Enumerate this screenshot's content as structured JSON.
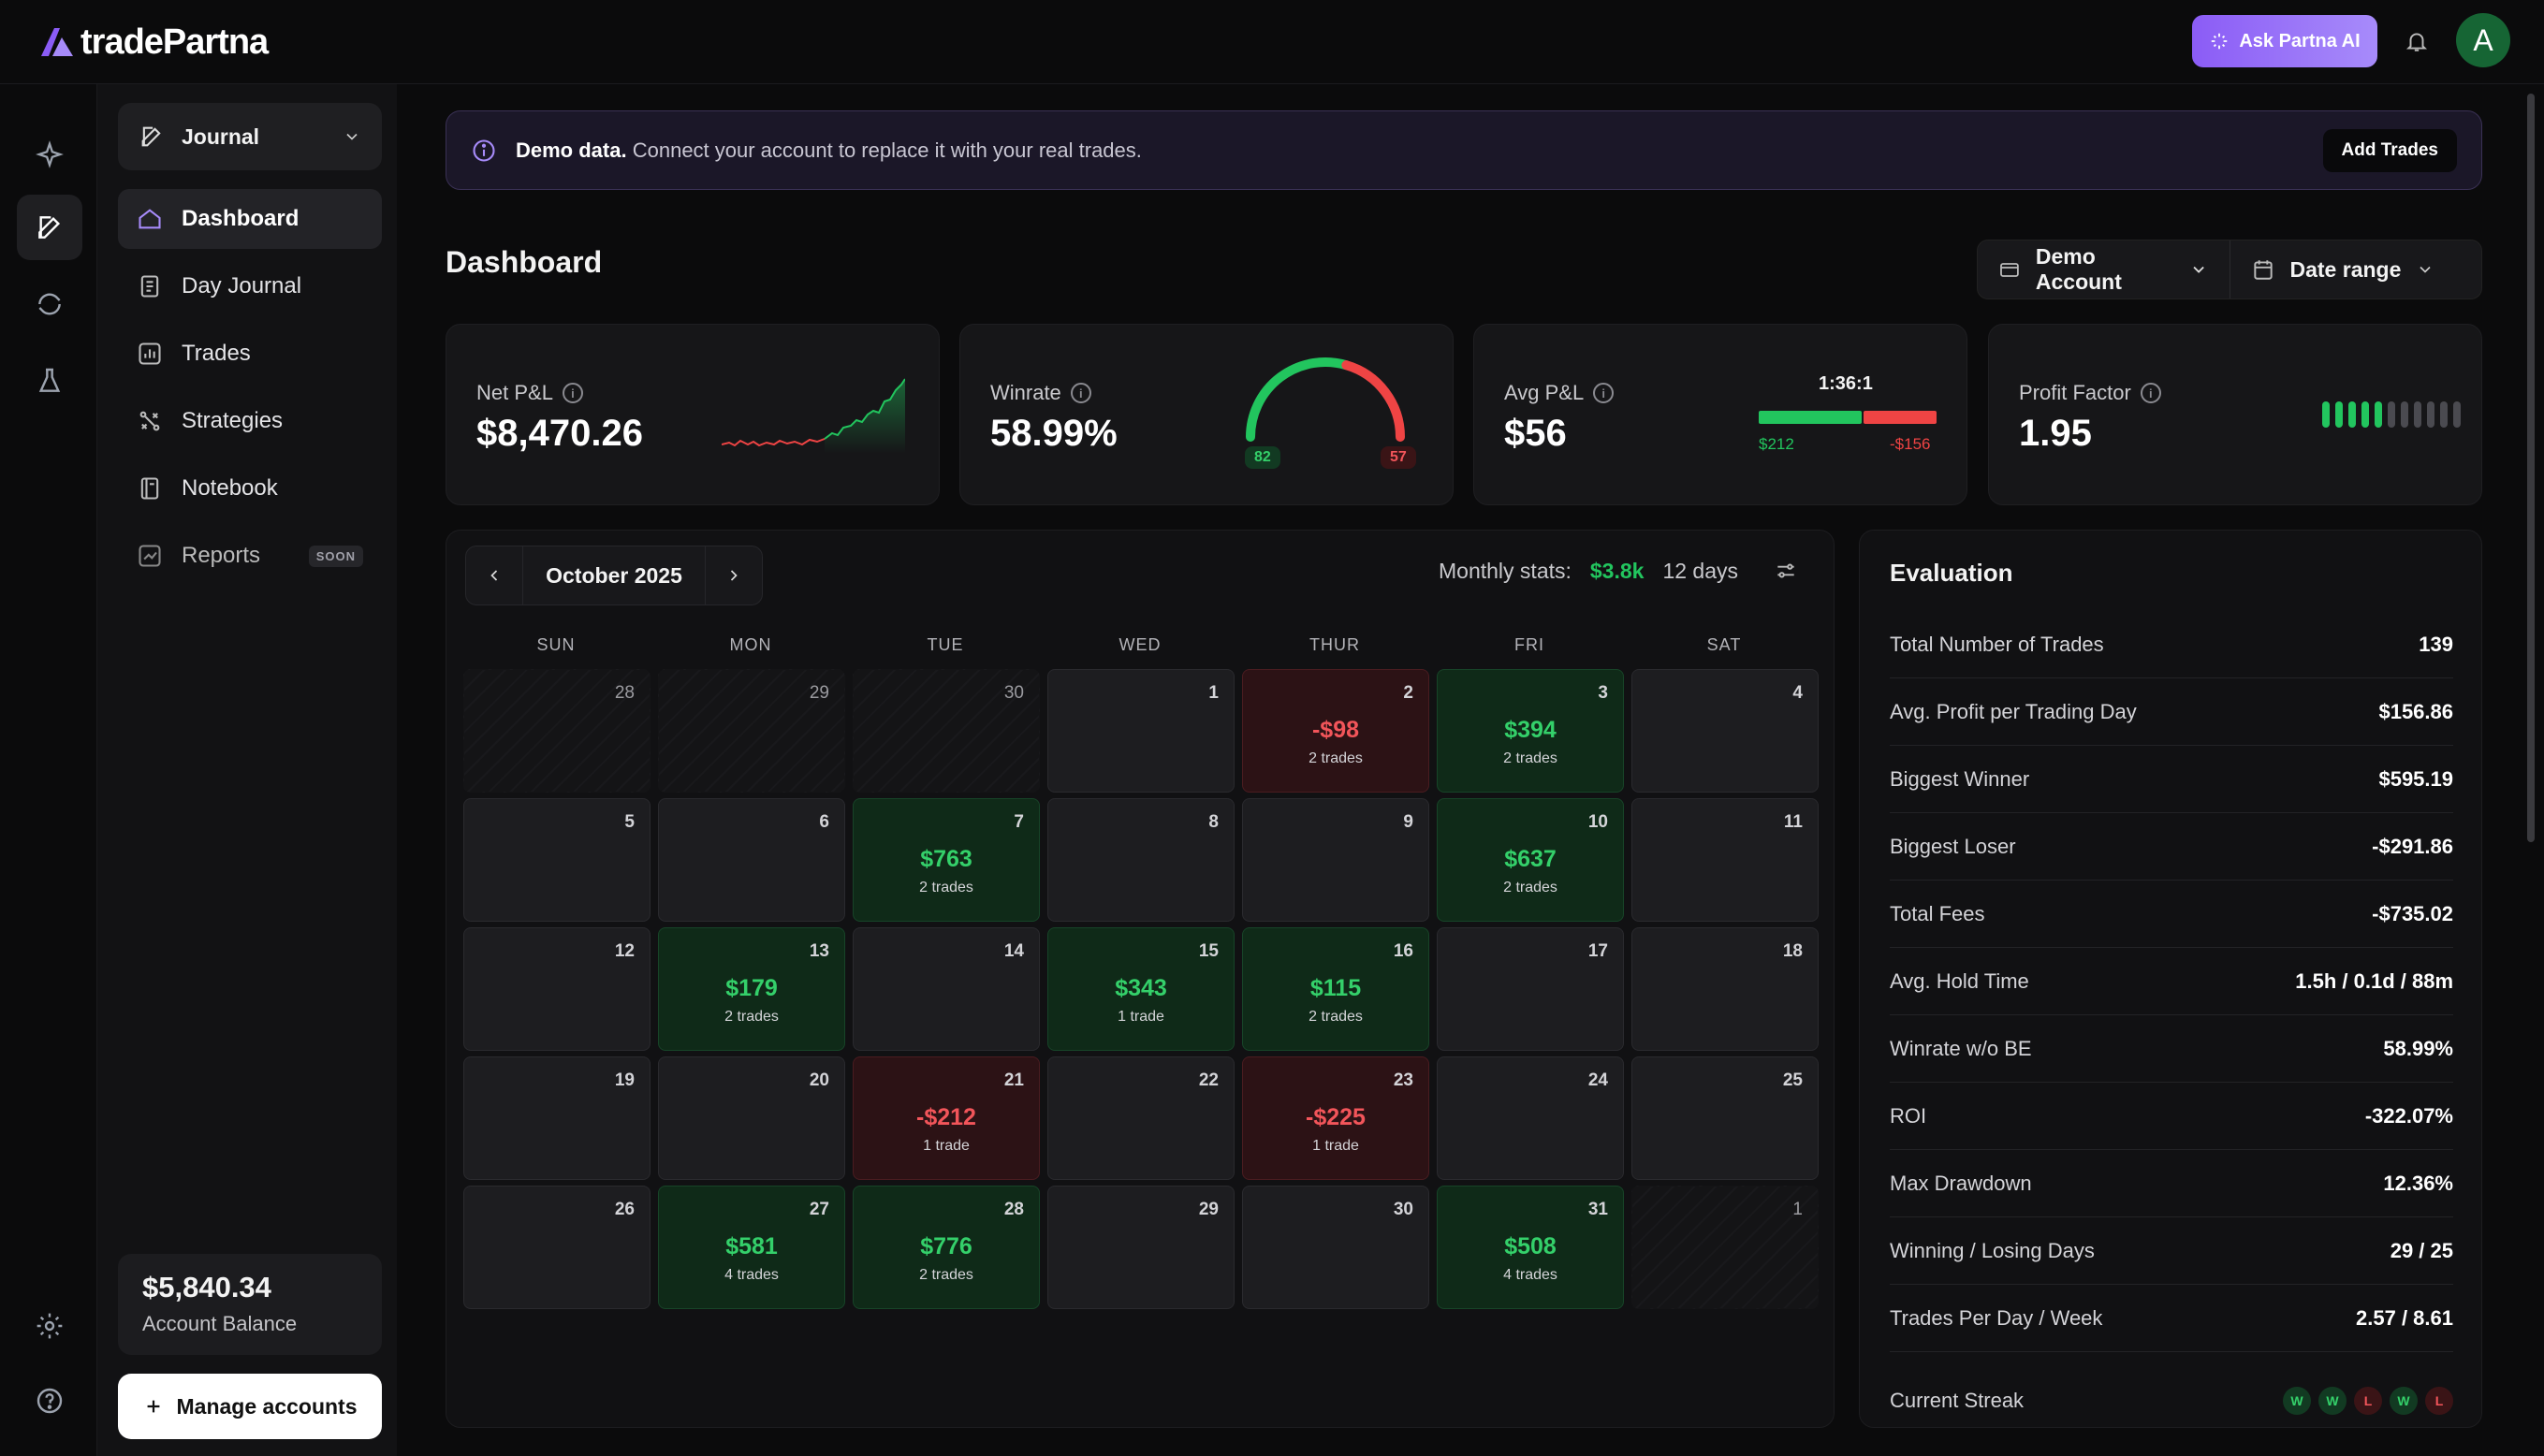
{
  "app": {
    "name": "tradePartna"
  },
  "topbar": {
    "ask_ai_label": "Ask Partna AI",
    "avatar_initial": "A"
  },
  "sidebar": {
    "journal_label": "Journal",
    "items": [
      {
        "label": "Dashboard",
        "icon": "home-icon",
        "active": true
      },
      {
        "label": "Day Journal",
        "icon": "journal-icon"
      },
      {
        "label": "Trades",
        "icon": "bar-chart-icon"
      },
      {
        "label": "Strategies",
        "icon": "strategy-icon"
      },
      {
        "label": "Notebook",
        "icon": "notebook-icon"
      },
      {
        "label": "Reports",
        "icon": "reports-icon",
        "badge": "SOON"
      }
    ],
    "balance_value": "$5,840.34",
    "balance_label": "Account Balance",
    "manage_label": "Manage accounts"
  },
  "banner": {
    "strong": "Demo data.",
    "text": "Connect your account to replace it with your real trades.",
    "button": "Add Trades"
  },
  "page": {
    "title": "Dashboard",
    "account_label": "Demo Account",
    "date_range_label": "Date range"
  },
  "stats": {
    "net_pnl": {
      "label": "Net P&L",
      "value": "$8,470.26"
    },
    "winrate": {
      "label": "Winrate",
      "value": "58.99%",
      "wins": "82",
      "losses": "57",
      "win_fraction": 0.59
    },
    "avg_pnl": {
      "label": "Avg P&L",
      "value": "$56",
      "ratio": "1:36:1",
      "avg_win": "$212",
      "avg_loss": "-$156"
    },
    "profit_factor": {
      "label": "Profit Factor",
      "value": "1.95"
    }
  },
  "calendar": {
    "month_label": "October 2025",
    "monthly_stats_label": "Monthly stats:",
    "monthly_pnl": "$3.8k",
    "monthly_days": "12 days",
    "weekdays": [
      "SUN",
      "MON",
      "TUE",
      "WED",
      "THUR",
      "FRI",
      "SAT"
    ],
    "weeks": [
      [
        {
          "day": "28",
          "type": "out"
        },
        {
          "day": "29",
          "type": "out"
        },
        {
          "day": "30",
          "type": "out"
        },
        {
          "day": "1"
        },
        {
          "day": "2",
          "type": "loss",
          "pnl": "-$98",
          "trades": "2 trades"
        },
        {
          "day": "3",
          "type": "win",
          "pnl": "$394",
          "trades": "2 trades"
        },
        {
          "day": "4"
        }
      ],
      [
        {
          "day": "5"
        },
        {
          "day": "6"
        },
        {
          "day": "7",
          "type": "win",
          "pnl": "$763",
          "trades": "2 trades"
        },
        {
          "day": "8"
        },
        {
          "day": "9"
        },
        {
          "day": "10",
          "type": "win",
          "pnl": "$637",
          "trades": "2 trades"
        },
        {
          "day": "11"
        }
      ],
      [
        {
          "day": "12"
        },
        {
          "day": "13",
          "type": "win",
          "pnl": "$179",
          "trades": "2 trades"
        },
        {
          "day": "14"
        },
        {
          "day": "15",
          "type": "win",
          "pnl": "$343",
          "trades": "1 trade"
        },
        {
          "day": "16",
          "type": "win",
          "pnl": "$115",
          "trades": "2 trades"
        },
        {
          "day": "17"
        },
        {
          "day": "18"
        }
      ],
      [
        {
          "day": "19"
        },
        {
          "day": "20"
        },
        {
          "day": "21",
          "type": "loss",
          "pnl": "-$212",
          "trades": "1 trade"
        },
        {
          "day": "22"
        },
        {
          "day": "23",
          "type": "loss",
          "pnl": "-$225",
          "trades": "1 trade"
        },
        {
          "day": "24"
        },
        {
          "day": "25"
        }
      ],
      [
        {
          "day": "26"
        },
        {
          "day": "27",
          "type": "win",
          "pnl": "$581",
          "trades": "4 trades"
        },
        {
          "day": "28",
          "type": "win",
          "pnl": "$776",
          "trades": "2 trades"
        },
        {
          "day": "29"
        },
        {
          "day": "30"
        },
        {
          "day": "31",
          "type": "win",
          "pnl": "$508",
          "trades": "4 trades"
        },
        {
          "day": "1",
          "type": "out"
        }
      ]
    ]
  },
  "evaluation": {
    "title": "Evaluation",
    "rows": [
      {
        "label": "Total Number of Trades",
        "value": "139"
      },
      {
        "label": "Avg. Profit per Trading Day",
        "value": "$156.86"
      },
      {
        "label": "Biggest Winner",
        "value": "$595.19"
      },
      {
        "label": "Biggest Loser",
        "value": "-$291.86"
      },
      {
        "label": "Total Fees",
        "value": "-$735.02"
      },
      {
        "label": "Avg. Hold Time",
        "value": "1.5h / 0.1d / 88m"
      },
      {
        "label": "Winrate w/o BE",
        "value": "58.99%"
      },
      {
        "label": "ROI",
        "value": "-322.07%"
      },
      {
        "label": "Max Drawdown",
        "value": "12.36%"
      },
      {
        "label": "Winning / Losing Days",
        "value": "29 / 25"
      },
      {
        "label": "Trades Per Day / Week",
        "value": "2.57 / 8.61"
      }
    ],
    "streak_label": "Current Streak",
    "streak": [
      "W",
      "W",
      "L",
      "W",
      "L"
    ]
  },
  "colors": {
    "accent": "#8b5cf6",
    "win": "#22c55e",
    "loss": "#ef4444"
  }
}
